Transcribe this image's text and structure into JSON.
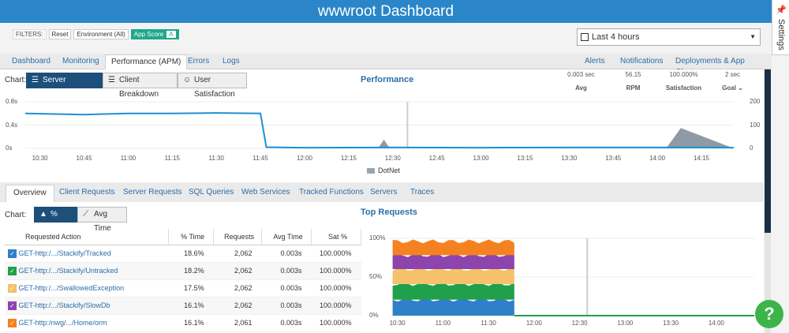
{
  "header": {
    "title": "wwwroot Dashboard"
  },
  "settings": {
    "label": "Settings",
    "pin_icon": "pin-icon"
  },
  "filters": {
    "label": "FILTERS:",
    "reset": "Reset",
    "environment": "Environment (All)",
    "app_score": "App Score",
    "grade": "A"
  },
  "time_range": {
    "value": "Last 4 hours"
  },
  "nav_tabs": [
    "Dashboard",
    "Monitoring",
    "Performance (APM)",
    "Errors",
    "Logs"
  ],
  "nav_right": [
    "Alerts",
    "Notifications",
    "Deployments & App Changes"
  ],
  "chart_controls": {
    "label": "Chart:",
    "buttons": [
      "Server Breakdown",
      "Client Breakdown",
      "User Satisfaction"
    ]
  },
  "performance": {
    "title": "Performance",
    "stats": [
      {
        "value": "0.003 sec",
        "label": "Avg"
      },
      {
        "value": "56.15",
        "label": "RPM"
      },
      {
        "value": "100.000%",
        "label": "Satisfaction"
      },
      {
        "value": "2 sec",
        "label": "Goal ⌄"
      }
    ]
  },
  "chart_data": [
    {
      "type": "area",
      "title": "Performance",
      "y_left_ticks": [
        "0.8s",
        "0.4s",
        "0s"
      ],
      "y_right_ticks": [
        "200",
        "100",
        "0"
      ],
      "x_ticks": [
        "10:30",
        "10:45",
        "11:00",
        "11:15",
        "11:30",
        "11:45",
        "12:00",
        "12:15",
        "12:30",
        "12:45",
        "13:00",
        "13:15",
        "13:30",
        "13:45",
        "14:00",
        "14:15"
      ],
      "series": [
        {
          "name": "DotNet",
          "x": [
            "10:25",
            "10:45",
            "11:00",
            "11:15",
            "11:30",
            "11:45",
            "11:47",
            "12:25",
            "12:27",
            "12:29",
            "13:58",
            "14:03",
            "14:08",
            "14:26"
          ],
          "values": [
            0,
            0,
            0,
            0,
            0,
            0,
            0,
            0,
            0.15,
            0,
            0,
            0,
            0.35,
            0
          ]
        },
        {
          "name": "RPM",
          "x": [
            "10:25",
            "10:45",
            "11:00",
            "11:15",
            "11:30",
            "11:45",
            "11:47",
            "12:00",
            "12:30",
            "13:00",
            "13:30",
            "14:00",
            "14:26"
          ],
          "values": [
            150,
            145,
            150,
            150,
            152,
            150,
            5,
            3,
            4,
            3,
            4,
            4,
            3
          ]
        }
      ],
      "legend": [
        "DotNet"
      ],
      "legend_position": "bottom"
    },
    {
      "type": "area",
      "title": "Top Requests",
      "y_ticks": [
        "100%",
        "50%",
        "0%"
      ],
      "x_ticks": [
        "10:30",
        "11:00",
        "11:30",
        "12:00",
        "12:30",
        "13:00",
        "13:30",
        "14:00"
      ],
      "series": [
        {
          "name": "GET-http:/.../Stackify/Tracked",
          "values": [
            18.6
          ]
        },
        {
          "name": "GET-http:/.../Stackify/Untracked",
          "values": [
            18.2
          ]
        },
        {
          "name": "GET-http:/.../SwallowedException",
          "values": [
            17.5
          ]
        },
        {
          "name": "GET-http:/.../Stackify/SlowDb",
          "values": [
            16.1
          ]
        },
        {
          "name": "GET-http:/nwg/.../Home/orm",
          "values": [
            16.1
          ]
        }
      ]
    }
  ],
  "sub_tabs": [
    "Overview",
    "Client Requests",
    "Server Requests",
    "SQL Queries",
    "Web Services",
    "Tracked Functions",
    "Servers",
    "Traces"
  ],
  "top_requests": {
    "title": "Top Requests",
    "chart_label": "Chart:",
    "buttons": [
      "% Time",
      "Avg Time"
    ],
    "columns": [
      "Requested Action",
      "% Time",
      "Requests",
      "Avg Time",
      "Sat %"
    ],
    "rows": [
      {
        "action": "GET-http:/.../Stackify/Tracked",
        "pct": "18.6%",
        "requests": "2,062",
        "avg": "0.003s",
        "sat": "100.000%",
        "color": "#2f80c9"
      },
      {
        "action": "GET-http:/.../Stackify/Untracked",
        "pct": "18.2%",
        "requests": "2,062",
        "avg": "0.003s",
        "sat": "100.000%",
        "color": "#20a04a"
      },
      {
        "action": "GET-http:/.../SwallowedException",
        "pct": "17.5%",
        "requests": "2,062",
        "avg": "0.003s",
        "sat": "100.000%",
        "color": "#f5c16b"
      },
      {
        "action": "GET-http:/.../Stackify/SlowDb",
        "pct": "16.1%",
        "requests": "2,062",
        "avg": "0.003s",
        "sat": "100.000%",
        "color": "#8e44ad"
      },
      {
        "action": "GET-http:/nwg/.../Home/orm",
        "pct": "16.1%",
        "requests": "2,061",
        "avg": "0.003s",
        "sat": "100.000%",
        "color": "#f58220"
      }
    ]
  },
  "help": {
    "label": "?"
  }
}
